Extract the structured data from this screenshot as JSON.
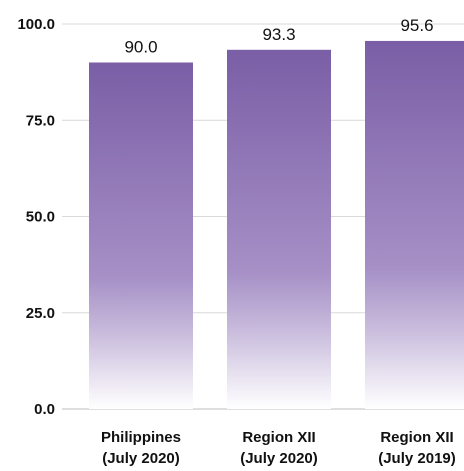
{
  "chart_data": {
    "type": "bar",
    "categories": [
      [
        "Philippines",
        "(July 2020)"
      ],
      [
        "Region XII",
        "(July 2020)"
      ],
      [
        "Region XII",
        "(July 2019)"
      ]
    ],
    "values": [
      90.0,
      93.3,
      95.6
    ],
    "value_labels": [
      "90.0",
      "93.3",
      "95.6"
    ],
    "ylim": [
      0,
      100
    ],
    "yticks": [
      "0.0",
      "25.0",
      "50.0",
      "75.0",
      "100.0"
    ],
    "ytick_values": [
      0,
      25,
      50,
      75,
      100
    ],
    "grid": true,
    "title": "",
    "xlabel": "",
    "ylabel": "",
    "colors": {
      "bar_top": "#7a5ea6",
      "bar_mid": "#a690c6",
      "bar_bottom": "#ffffff",
      "grid": "#d9d9d9",
      "axis": "#bfbfbf"
    }
  }
}
